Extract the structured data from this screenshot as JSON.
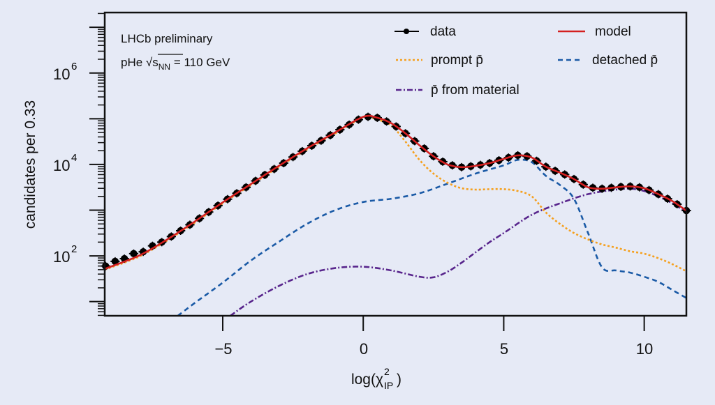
{
  "chart_data": {
    "type": "line",
    "xlabel": {
      "main": "log(χ",
      "sup": "2",
      "sub": "IP",
      "close": ")"
    },
    "ylabel": "candidates per 0.33",
    "xlim": [
      -9.2,
      11.5
    ],
    "ylim": [
      4.9,
      21000000
    ],
    "yscale": "log",
    "grid": false,
    "legend_placement": "top-right",
    "x_ticks": [
      {
        "value": -5,
        "label": "−5"
      },
      {
        "value": 0,
        "label": "0"
      },
      {
        "value": 5,
        "label": "5"
      },
      {
        "value": 10,
        "label": "10"
      }
    ],
    "y_ticks": [
      {
        "value": 100,
        "base": "10",
        "exp": "2"
      },
      {
        "value": 10000,
        "base": "10",
        "exp": "4"
      },
      {
        "value": 1000000,
        "base": "10",
        "exp": "6"
      }
    ],
    "annotations": {
      "experiment": "LHCb preliminary",
      "system_prefix": "pHe √s",
      "system_sub": "NN",
      "system_suffix": " = 110 GeV"
    },
    "legend": {
      "data": "data",
      "model": "model",
      "prompt": "prompt p̄",
      "detached": "detached p̄",
      "material": "p̄ from material"
    },
    "colors": {
      "data": "#000000",
      "model": "#d42020",
      "prompt": "#f5a01e",
      "detached": "#1a5aa6",
      "material": "#58258c",
      "background": "#e6eaf6"
    },
    "data": {
      "bin_width": 0.33,
      "x": [
        -9.17,
        -8.83,
        -8.5,
        -8.17,
        -7.83,
        -7.5,
        -7.17,
        -6.83,
        -6.5,
        -6.17,
        -5.83,
        -5.5,
        -5.17,
        -4.83,
        -4.5,
        -4.17,
        -3.83,
        -3.5,
        -3.17,
        -2.83,
        -2.5,
        -2.17,
        -1.83,
        -1.5,
        -1.17,
        -0.83,
        -0.5,
        -0.17,
        0.17,
        0.5,
        0.83,
        1.17,
        1.5,
        1.83,
        2.17,
        2.5,
        2.83,
        3.17,
        3.5,
        3.83,
        4.17,
        4.5,
        4.83,
        5.17,
        5.5,
        5.83,
        6.17,
        6.5,
        6.83,
        7.17,
        7.5,
        7.83,
        8.17,
        8.5,
        8.83,
        9.17,
        9.5,
        9.83,
        10.17,
        10.5,
        10.83,
        11.17,
        11.5
      ],
      "y": [
        60,
        76,
        87,
        112,
        123,
        166,
        200,
        265,
        355,
        480,
        660,
        910,
        1260,
        1740,
        2340,
        3160,
        4370,
        5890,
        7940,
        10700,
        14500,
        19500,
        25700,
        33100,
        43700,
        57500,
        74100,
        95500,
        110000,
        105000,
        87000,
        67600,
        47900,
        32400,
        22400,
        15100,
        11500,
        9550,
        8710,
        9120,
        9770,
        10700,
        12300,
        14100,
        15800,
        15100,
        12000,
        8910,
        7240,
        6030,
        4790,
        3630,
        3090,
        2950,
        3090,
        3240,
        3310,
        3160,
        2750,
        2240,
        1780,
        1350,
        980
      ]
    },
    "series": [
      {
        "name": "model",
        "x": [
          -9.2,
          -8,
          -7,
          -6,
          -5,
          -4,
          -3,
          -2,
          -1,
          0,
          0.5,
          1,
          1.5,
          2,
          2.5,
          3,
          3.5,
          4,
          4.5,
          5,
          5.5,
          6,
          6.5,
          7,
          7.5,
          8,
          8.5,
          9,
          9.5,
          10,
          10.5,
          11,
          11.5
        ],
        "y": [
          52,
          100,
          224,
          562,
          1480,
          3720,
          9330,
          22400,
          50100,
          110000,
          105000,
          79400,
          47900,
          26300,
          15100,
          10000,
          8710,
          9330,
          10700,
          13200,
          15800,
          14100,
          8910,
          6610,
          4790,
          3160,
          2950,
          3160,
          3310,
          3020,
          2240,
          1580,
          977
        ]
      },
      {
        "name": "prompt p̄",
        "x": [
          -9.2,
          -8,
          -7,
          -6,
          -5,
          -4,
          -3,
          -2,
          -1,
          0,
          0.5,
          1,
          1.5,
          2,
          2.5,
          3,
          3.5,
          4,
          4.5,
          5,
          5.5,
          6,
          6.5,
          7,
          7.5,
          8,
          8.5,
          9,
          9.5,
          10,
          10.5,
          11,
          11.5
        ],
        "y": [
          50,
          95,
          213,
          534,
          1410,
          3540,
          8870,
          21300,
          47600,
          105000,
          95500,
          70800,
          31600,
          12600,
          6310,
          3980,
          3020,
          2820,
          2880,
          2880,
          2630,
          2000,
          891,
          501,
          316,
          229,
          178,
          151,
          126,
          112,
          89,
          66,
          46
        ]
      },
      {
        "name": "detached p̄",
        "x": [
          -6.6,
          -6,
          -5,
          -4,
          -3,
          -2,
          -1,
          0,
          1,
          2,
          3,
          4,
          5,
          5.5,
          6,
          6.5,
          7,
          7.5,
          8,
          8.5,
          9,
          9.5,
          10,
          10.5,
          11,
          11.5
        ],
        "y": [
          4.9,
          9.3,
          26,
          79,
          204,
          501,
          1000,
          1510,
          1780,
          2340,
          3800,
          6310,
          9550,
          12600,
          11200,
          5620,
          3550,
          1780,
          316,
          56,
          48,
          43,
          35,
          27,
          18,
          12
        ]
      },
      {
        "name": "p̄ from material",
        "x": [
          -4.73,
          -4,
          -3,
          -2,
          -1,
          0,
          1,
          2,
          2.5,
          3,
          3.5,
          4,
          4.5,
          5,
          6,
          7,
          8,
          9,
          9.5,
          10,
          10.5,
          11,
          11.5
        ],
        "y": [
          4.9,
          10,
          22,
          40,
          54,
          58,
          48,
          35,
          34,
          45,
          71,
          120,
          200,
          316,
          794,
          1410,
          2240,
          2820,
          2950,
          2630,
          2000,
          1410,
          891
        ]
      }
    ]
  }
}
